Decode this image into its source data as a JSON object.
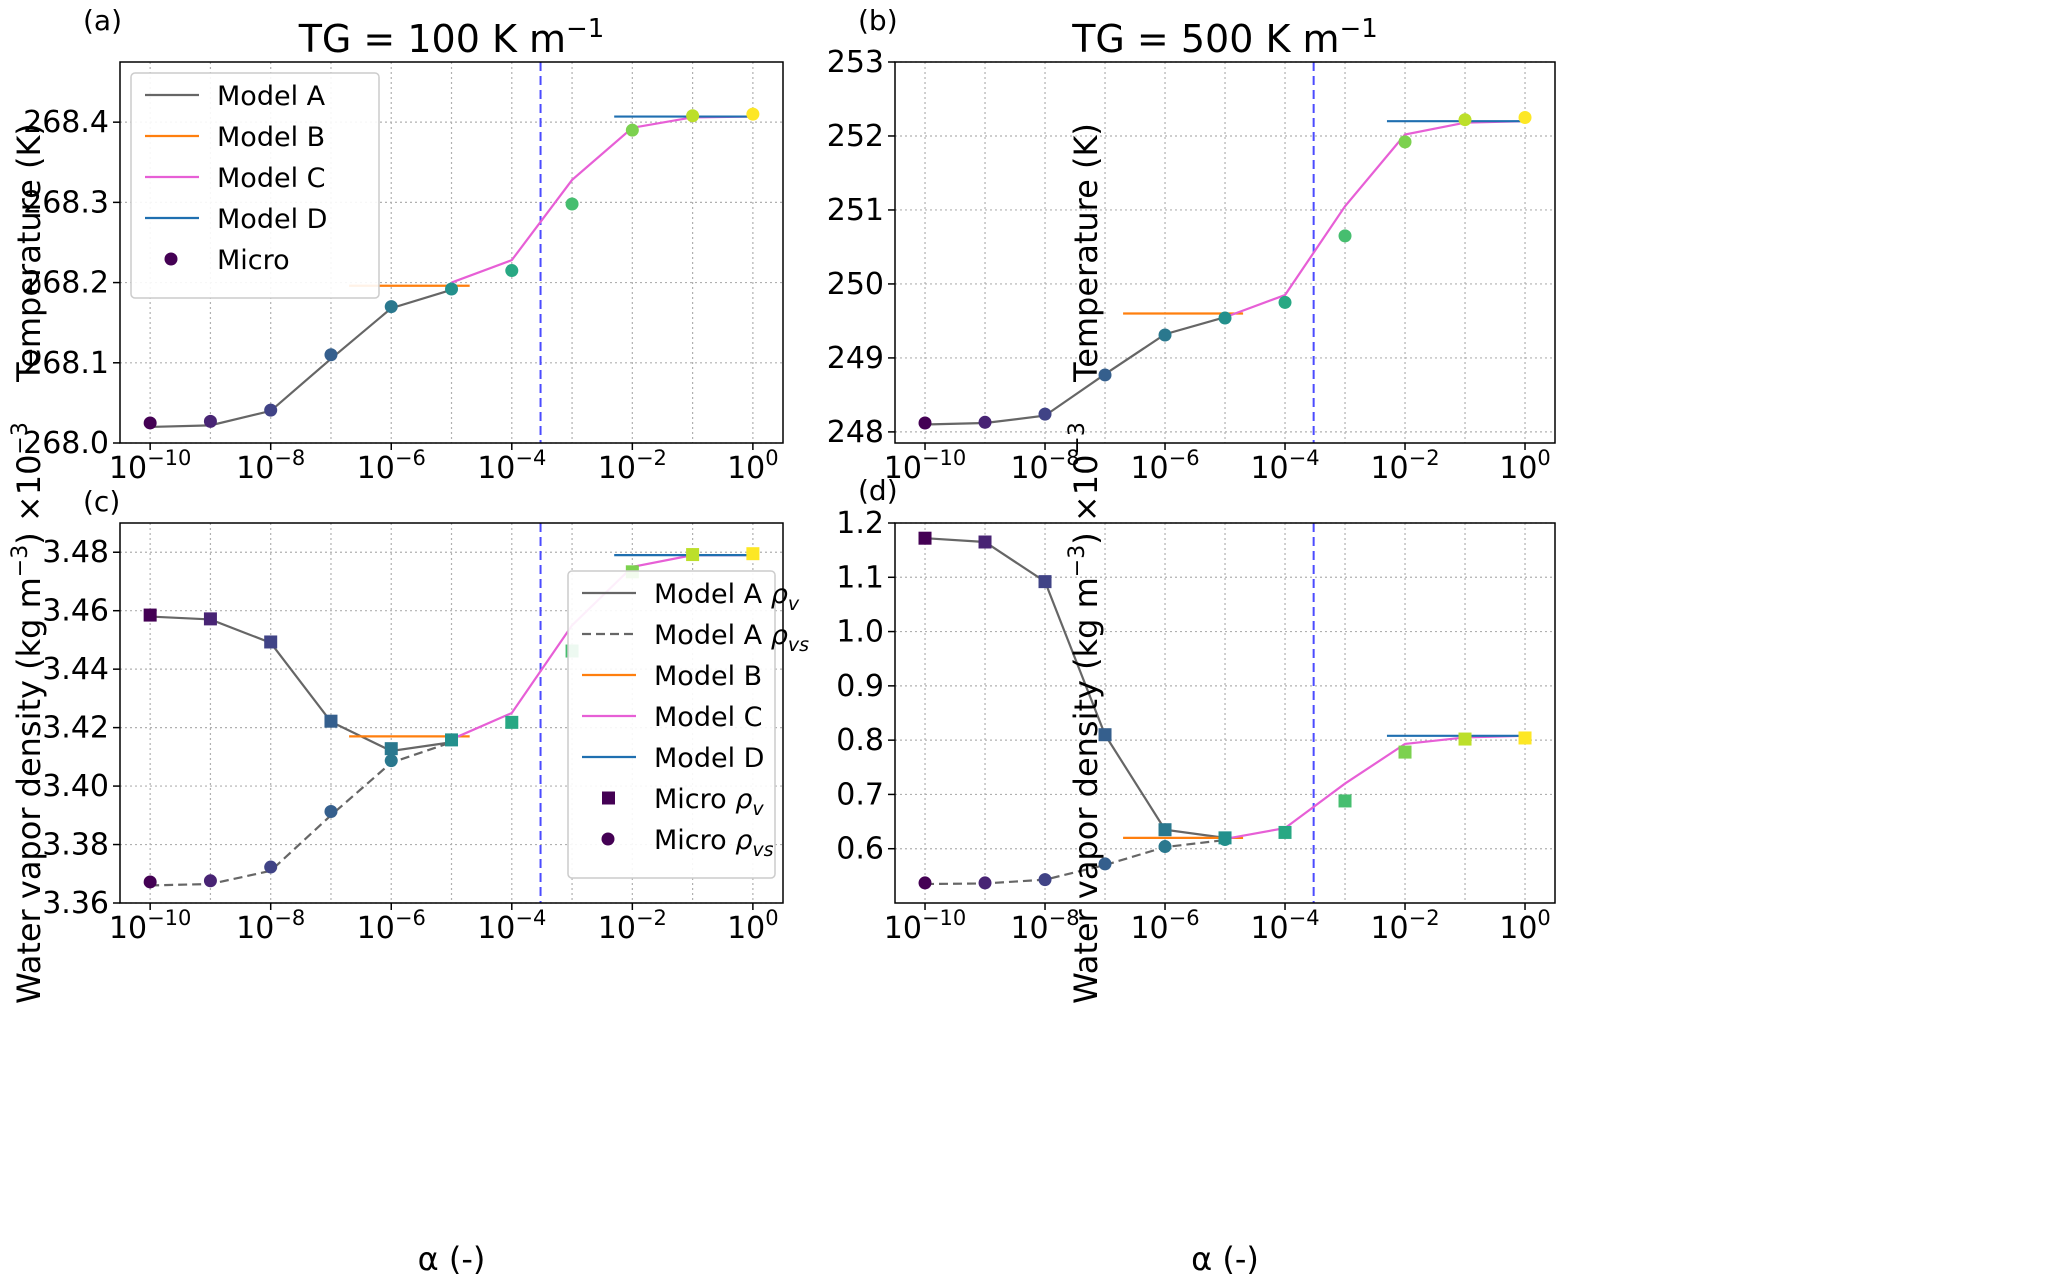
{
  "figure": {
    "xlabel": "α (-)",
    "vline_x": 0.0003,
    "colors": {
      "model_a": "#666666",
      "model_b": "#ff7f0e",
      "model_c": "#e75fd6",
      "model_d": "#1f6fb0",
      "vline": "#4b4bff",
      "micro_ramp": "viridis"
    }
  },
  "chart_data": [
    {
      "id": "a",
      "panel_label": "(a)",
      "type": "line",
      "title_text": "TG = 100 K m",
      "title_exp": "−1",
      "ylabel": "Temperature (K)",
      "xscale": "log",
      "xlim": [
        3.16e-11,
        3.16
      ],
      "ylim": [
        268.0,
        268.475
      ],
      "yticks": [
        "268.0",
        "268.1",
        "268.2",
        "268.3",
        "268.4"
      ],
      "xticks_exp": [
        "−10",
        "−8",
        "−6",
        "−4",
        "−2",
        "0"
      ],
      "grid": true,
      "legend": {
        "placement": "top-left",
        "entries": [
          "Model A",
          "Model B",
          "Model C",
          "Model D",
          "Micro"
        ]
      },
      "series": [
        {
          "key": "model_a",
          "name": "Model A",
          "style": "solid",
          "x": [
            1e-10,
            1e-09,
            1e-08,
            1e-07,
            1e-06,
            1e-05
          ],
          "y": [
            268.02,
            268.022,
            268.04,
            268.105,
            268.168,
            268.191
          ]
        },
        {
          "key": "model_b",
          "name": "Model B",
          "style": "solid",
          "x": [
            2e-07,
            2e-05
          ],
          "y": [
            268.196,
            268.196
          ]
        },
        {
          "key": "model_c",
          "name": "Model C",
          "style": "solid",
          "x": [
            1e-05,
            0.0001,
            0.001,
            0.01,
            0.1,
            1
          ],
          "y": [
            268.2,
            268.228,
            268.328,
            268.393,
            268.406,
            268.407
          ]
        },
        {
          "key": "model_d",
          "name": "Model D",
          "style": "solid",
          "x": [
            0.005,
            1.0
          ],
          "y": [
            268.407,
            268.407
          ]
        },
        {
          "key": "micro",
          "name": "Micro",
          "marker": "circle",
          "x": [
            1e-10,
            1e-09,
            1e-08,
            1e-07,
            1e-06,
            1e-05,
            0.0001,
            0.001,
            0.01,
            0.1,
            1
          ],
          "y": [
            268.025,
            268.027,
            268.041,
            268.11,
            268.17,
            268.192,
            268.215,
            268.298,
            268.39,
            268.408,
            268.41
          ]
        }
      ]
    },
    {
      "id": "b",
      "panel_label": "(b)",
      "type": "line",
      "title_text": "TG = 500 K m",
      "title_exp": "−1",
      "ylabel": "Temperature (K)",
      "xscale": "log",
      "xlim": [
        3.16e-11,
        3.16
      ],
      "ylim": [
        247.85,
        253.0
      ],
      "yticks": [
        "248",
        "249",
        "250",
        "251",
        "252",
        "253"
      ],
      "xticks_exp": [
        "−10",
        "−8",
        "−6",
        "−4",
        "−2",
        "0"
      ],
      "grid": true,
      "series": [
        {
          "key": "model_a",
          "name": "Model A",
          "style": "solid",
          "x": [
            1e-10,
            1e-09,
            1e-08,
            1e-07,
            1e-06,
            1e-05
          ],
          "y": [
            248.1,
            248.12,
            248.22,
            248.78,
            249.32,
            249.55
          ]
        },
        {
          "key": "model_b",
          "name": "Model B",
          "style": "solid",
          "x": [
            2e-07,
            2e-05
          ],
          "y": [
            249.6,
            249.6
          ]
        },
        {
          "key": "model_c",
          "name": "Model C",
          "style": "solid",
          "x": [
            1e-05,
            0.0001,
            0.001,
            0.01,
            0.1,
            1
          ],
          "y": [
            249.55,
            249.85,
            251.05,
            252.02,
            252.18,
            252.2
          ]
        },
        {
          "key": "model_d",
          "name": "Model D",
          "style": "solid",
          "x": [
            0.005,
            1.0
          ],
          "y": [
            252.2,
            252.2
          ]
        },
        {
          "key": "micro",
          "name": "Micro",
          "marker": "circle",
          "x": [
            1e-10,
            1e-09,
            1e-08,
            1e-07,
            1e-06,
            1e-05,
            0.0001,
            0.001,
            0.01,
            0.1,
            1
          ],
          "y": [
            248.12,
            248.13,
            248.24,
            248.77,
            249.31,
            249.54,
            249.75,
            250.65,
            251.92,
            252.22,
            252.25
          ]
        }
      ]
    },
    {
      "id": "c",
      "panel_label": "(c)",
      "type": "line",
      "ylabel": "Water vapor density (kg m",
      "ylabel_exp": "−3",
      "ylabel_tail": ") ×10",
      "ylabel_tail_exp": "−3",
      "xscale": "log",
      "xlim": [
        3.16e-11,
        3.16
      ],
      "ylim": [
        3.36,
        3.49
      ],
      "yticks": [
        "3.36",
        "3.38",
        "3.40",
        "3.42",
        "3.44",
        "3.46",
        "3.48"
      ],
      "xticks_exp": [
        "−10",
        "−8",
        "−6",
        "−4",
        "−2",
        "0"
      ],
      "grid": true,
      "legend": {
        "placement": "lower-right",
        "entries": [
          "Model A ρv",
          "Model A ρvs",
          "Model B",
          "Model C",
          "Model D",
          "Micro ρv",
          "Micro ρvs"
        ]
      },
      "series": [
        {
          "key": "model_a",
          "name": "Model A ρv",
          "style": "solid",
          "x": [
            1e-10,
            1e-09,
            1e-08,
            1e-07,
            1e-06,
            1e-05
          ],
          "y": [
            3.458,
            3.457,
            3.449,
            3.422,
            3.412,
            3.415
          ]
        },
        {
          "key": "model_a",
          "name": "Model A ρvs",
          "style": "dashed",
          "x": [
            1e-10,
            1e-09,
            1e-08,
            1e-07,
            1e-06,
            1e-05
          ],
          "y": [
            3.366,
            3.3665,
            3.371,
            3.39,
            3.408,
            3.415
          ]
        },
        {
          "key": "model_b",
          "name": "Model B",
          "style": "solid",
          "x": [
            2e-07,
            2e-05
          ],
          "y": [
            3.417,
            3.417
          ]
        },
        {
          "key": "model_c",
          "name": "Model C",
          "style": "solid",
          "x": [
            1e-05,
            0.0001,
            0.001,
            0.01,
            0.1,
            1
          ],
          "y": [
            3.416,
            3.425,
            3.455,
            3.475,
            3.479,
            3.479
          ]
        },
        {
          "key": "model_d",
          "name": "Model D",
          "style": "solid",
          "x": [
            0.005,
            1.0
          ],
          "y": [
            3.479,
            3.479
          ]
        },
        {
          "key": "micro",
          "name": "Micro ρv",
          "marker": "square",
          "x": [
            1e-10,
            1e-09,
            1e-08,
            1e-07,
            1e-06,
            1e-05,
            0.0001,
            0.001,
            0.01,
            0.1,
            1
          ],
          "y": [
            3.4585,
            3.4572,
            3.4493,
            3.4222,
            3.4128,
            3.4158,
            3.4218,
            3.4462,
            3.4733,
            3.4792,
            3.4795
          ]
        },
        {
          "key": "micro",
          "name": "Micro ρvs",
          "marker": "circle",
          "x": [
            1e-10,
            1e-09,
            1e-08,
            1e-07,
            1e-06
          ],
          "y": [
            3.3672,
            3.3676,
            3.3723,
            3.3913,
            3.4087
          ]
        }
      ]
    },
    {
      "id": "d",
      "panel_label": "(d)",
      "type": "line",
      "ylabel": "Water vapor density (kg m",
      "ylabel_exp": "−3",
      "ylabel_tail": ") ×10",
      "ylabel_tail_exp": "−3",
      "xscale": "log",
      "xlim": [
        3.16e-11,
        3.16
      ],
      "ylim": [
        0.5,
        1.2
      ],
      "yticks": [
        "0.6",
        "0.7",
        "0.8",
        "0.9",
        "1.0",
        "1.1",
        "1.2"
      ],
      "xticks_exp": [
        "−10",
        "−8",
        "−6",
        "−4",
        "−2",
        "0"
      ],
      "grid": true,
      "series": [
        {
          "key": "model_a",
          "name": "Model A ρv",
          "style": "solid",
          "x": [
            1e-10,
            1e-09,
            1e-08,
            1e-07,
            1e-06,
            1e-05
          ],
          "y": [
            1.172,
            1.165,
            1.092,
            0.81,
            0.635,
            0.62
          ]
        },
        {
          "key": "model_a",
          "name": "Model A ρvs",
          "style": "dashed",
          "x": [
            1e-10,
            1e-09,
            1e-08,
            1e-07,
            1e-06,
            1e-05
          ],
          "y": [
            0.535,
            0.536,
            0.543,
            0.57,
            0.603,
            0.616
          ]
        },
        {
          "key": "model_b",
          "name": "Model B",
          "style": "solid",
          "x": [
            2e-07,
            2e-05
          ],
          "y": [
            0.62,
            0.62
          ]
        },
        {
          "key": "model_c",
          "name": "Model C",
          "style": "solid",
          "x": [
            1e-05,
            0.0001,
            0.001,
            0.01,
            0.1,
            1
          ],
          "y": [
            0.618,
            0.638,
            0.72,
            0.793,
            0.805,
            0.808
          ]
        },
        {
          "key": "model_d",
          "name": "Model D",
          "style": "solid",
          "x": [
            0.005,
            1.0
          ],
          "y": [
            0.808,
            0.808
          ]
        },
        {
          "key": "micro",
          "name": "Micro ρv",
          "marker": "square",
          "x": [
            1e-10,
            1e-09,
            1e-08,
            1e-07,
            1e-06,
            1e-05,
            0.0001,
            0.001,
            0.01,
            0.1,
            1
          ],
          "y": [
            1.172,
            1.165,
            1.092,
            0.81,
            0.635,
            0.62,
            0.63,
            0.688,
            0.778,
            0.802,
            0.804
          ]
        },
        {
          "key": "micro",
          "name": "Micro ρvs",
          "marker": "circle",
          "x": [
            1e-10,
            1e-09,
            1e-08,
            1e-07,
            1e-06,
            1e-05
          ],
          "y": [
            0.537,
            0.537,
            0.543,
            0.572,
            0.604,
            0.617
          ]
        }
      ]
    }
  ]
}
